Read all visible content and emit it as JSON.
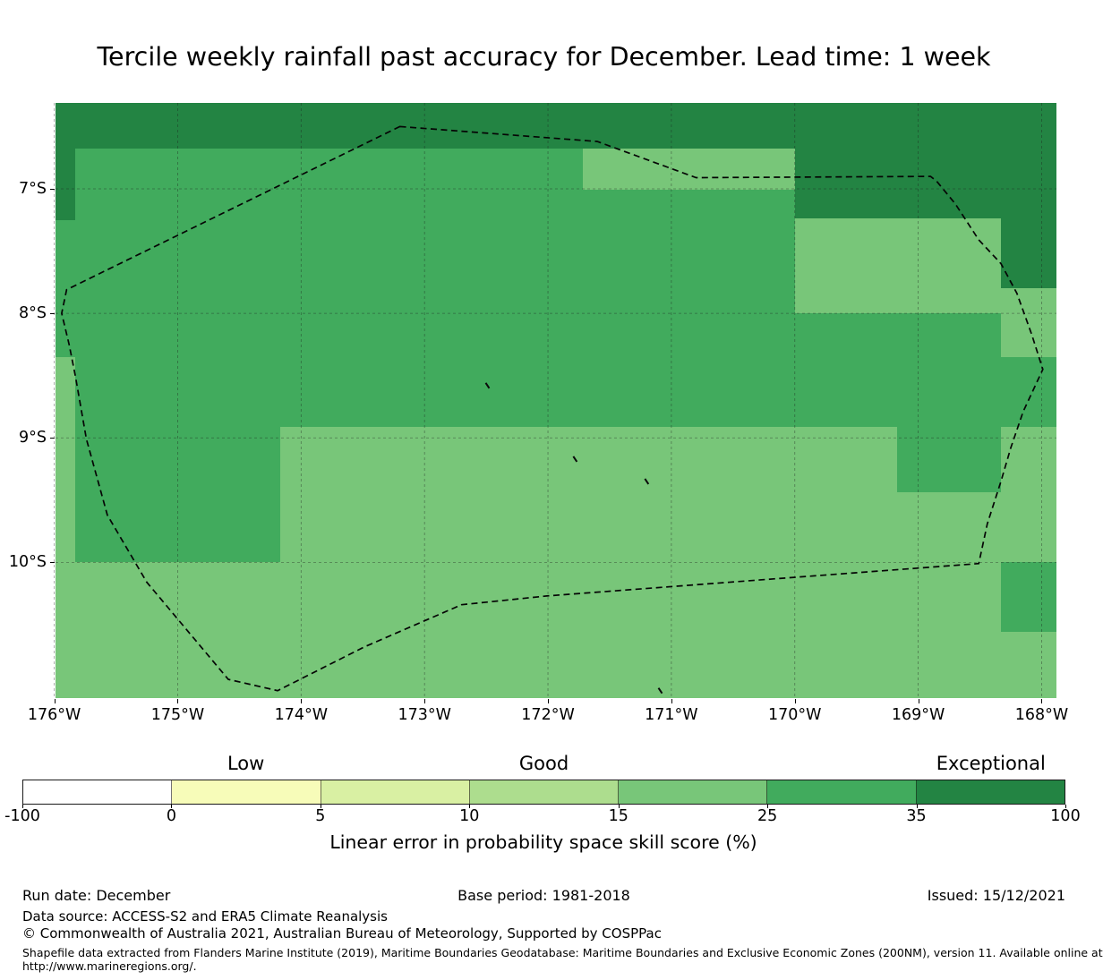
{
  "title": "Tercile weekly rainfall past accuracy for December. Lead time: 1 week",
  "chart_data": {
    "type": "heatmap",
    "title": "Tercile weekly rainfall past accuracy for December. Lead time: 1 week",
    "projection": "longitude/latitude degrees (west and south negative)",
    "x_range": [
      -175.99,
      -167.88
    ],
    "y_range": [
      -11.09,
      -6.31
    ],
    "grid": true,
    "lon_ticks": [
      {
        "v": -176,
        "label": "176°W"
      },
      {
        "v": -175,
        "label": "175°W"
      },
      {
        "v": -174,
        "label": "174°W"
      },
      {
        "v": -173,
        "label": "173°W"
      },
      {
        "v": -172,
        "label": "172°W"
      },
      {
        "v": -171,
        "label": "171°W"
      },
      {
        "v": -170,
        "label": "170°W"
      },
      {
        "v": -169,
        "label": "169°W"
      },
      {
        "v": -168,
        "label": "168°W"
      }
    ],
    "lat_ticks": [
      {
        "v": -7,
        "label": "7°S"
      },
      {
        "v": -8,
        "label": "8°S"
      },
      {
        "v": -9,
        "label": "9°S"
      },
      {
        "v": -10,
        "label": "10°S"
      }
    ],
    "skill_bins": {
      "15-25": "#78c679",
      "25-35": "#41ab5d",
      "35-100": "#238443"
    },
    "regions": [
      {
        "lon": [
          -175.99,
          -167.88
        ],
        "lat": [
          -6.31,
          -11.09
        ],
        "bin": "25-35"
      },
      {
        "lon": [
          -175.99,
          -167.88
        ],
        "lat": [
          -6.31,
          -6.68
        ],
        "bin": "35-100"
      },
      {
        "lon": [
          -175.99,
          -175.83
        ],
        "lat": [
          -6.31,
          -7.25
        ],
        "bin": "35-100"
      },
      {
        "lon": [
          -170.0,
          -168.33
        ],
        "lat": [
          -6.31,
          -7.24
        ],
        "bin": "35-100"
      },
      {
        "lon": [
          -168.33,
          -167.88
        ],
        "lat": [
          -6.31,
          -7.8
        ],
        "bin": "35-100"
      },
      {
        "lon": [
          -171.72,
          -170.0
        ],
        "lat": [
          -6.68,
          -7.01
        ],
        "bin": "15-25"
      },
      {
        "lon": [
          -170.0,
          -168.33
        ],
        "lat": [
          -7.24,
          -8.0
        ],
        "bin": "15-25"
      },
      {
        "lon": [
          -168.33,
          -167.88
        ],
        "lat": [
          -7.8,
          -8.35
        ],
        "bin": "15-25"
      },
      {
        "lon": [
          -175.99,
          -175.83
        ],
        "lat": [
          -8.35,
          -11.09
        ],
        "bin": "15-25"
      },
      {
        "lon": [
          -174.17,
          -169.17
        ],
        "lat": [
          -8.91,
          -10.0
        ],
        "bin": "15-25"
      },
      {
        "lon": [
          -169.17,
          -168.33
        ],
        "lat": [
          -9.44,
          -10.0
        ],
        "bin": "15-25"
      },
      {
        "lon": [
          -168.33,
          -167.88
        ],
        "lat": [
          -8.91,
          -10.0
        ],
        "bin": "15-25"
      },
      {
        "lon": [
          -175.99,
          -167.88
        ],
        "lat": [
          -10.0,
          -11.09
        ],
        "bin": "15-25"
      },
      {
        "lon": [
          -168.33,
          -167.88
        ],
        "lat": [
          -10.0,
          -10.56
        ],
        "bin": "25-35"
      }
    ],
    "islands": [
      [
        -172.49,
        -8.58
      ],
      [
        -171.78,
        -9.17
      ],
      [
        -171.2,
        -9.35
      ],
      [
        -171.09,
        -11.03
      ]
    ],
    "eez_boundary": [
      [
        -173.2,
        -6.5
      ],
      [
        -171.6,
        -6.62
      ],
      [
        -170.8,
        -6.91
      ],
      [
        -168.9,
        -6.9
      ],
      [
        -168.85,
        -6.94
      ],
      [
        -168.7,
        -7.12
      ],
      [
        -168.51,
        -7.41
      ],
      [
        -168.33,
        -7.6
      ],
      [
        -168.2,
        -7.84
      ],
      [
        -168.08,
        -8.17
      ],
      [
        -167.99,
        -8.45
      ],
      [
        -168.15,
        -8.79
      ],
      [
        -168.25,
        -9.08
      ],
      [
        -168.33,
        -9.35
      ],
      [
        -168.44,
        -9.69
      ],
      [
        -168.51,
        -10.01
      ],
      [
        -170.13,
        -10.13
      ],
      [
        -172.01,
        -10.27
      ],
      [
        -172.7,
        -10.34
      ],
      [
        -173.49,
        -10.68
      ],
      [
        -174.19,
        -11.03
      ],
      [
        -174.59,
        -10.94
      ],
      [
        -175.25,
        -10.16
      ],
      [
        -175.57,
        -9.62
      ],
      [
        -175.74,
        -9.01
      ],
      [
        -175.83,
        -8.5
      ],
      [
        -175.88,
        -8.25
      ],
      [
        -175.94,
        -8.0
      ],
      [
        -175.9,
        -7.81
      ]
    ],
    "legend_position": "bottom"
  },
  "colorbar": {
    "bounds": [
      "-100",
      "0",
      "5",
      "10",
      "15",
      "25",
      "35",
      "100"
    ],
    "colors": [
      "#ffffff",
      "#f7fcb9",
      "#d9f0a3",
      "#addd8e",
      "#78c679",
      "#41ab5d",
      "#238443"
    ],
    "categories": [
      {
        "label": "Low",
        "segment": 1
      },
      {
        "label": "Good",
        "segment": 3
      },
      {
        "label": "Exceptional",
        "segment": 6
      }
    ],
    "axis_label": "Linear error in probability space skill score (%)"
  },
  "footer": {
    "run_date": "Run date: December",
    "base_period": "Base period: 1981-2018",
    "issued": "Issued: 15/12/2021",
    "data_source": "Data source: ACCESS-S2 and ERA5 Climate Reanalysis",
    "copyright": "© Commonwealth of Australia 2021, Australian Bureau of Meteorology, Supported by COSPPac",
    "shapefile_line1": "Shapefile data extracted from Flanders Marine Institute (2019), Maritime Boundaries Geodatabase: Maritime Boundaries and Exclusive Economic Zones (200NM), version 11. Available online at",
    "shapefile_line2": "http://www.marineregions.org/."
  }
}
